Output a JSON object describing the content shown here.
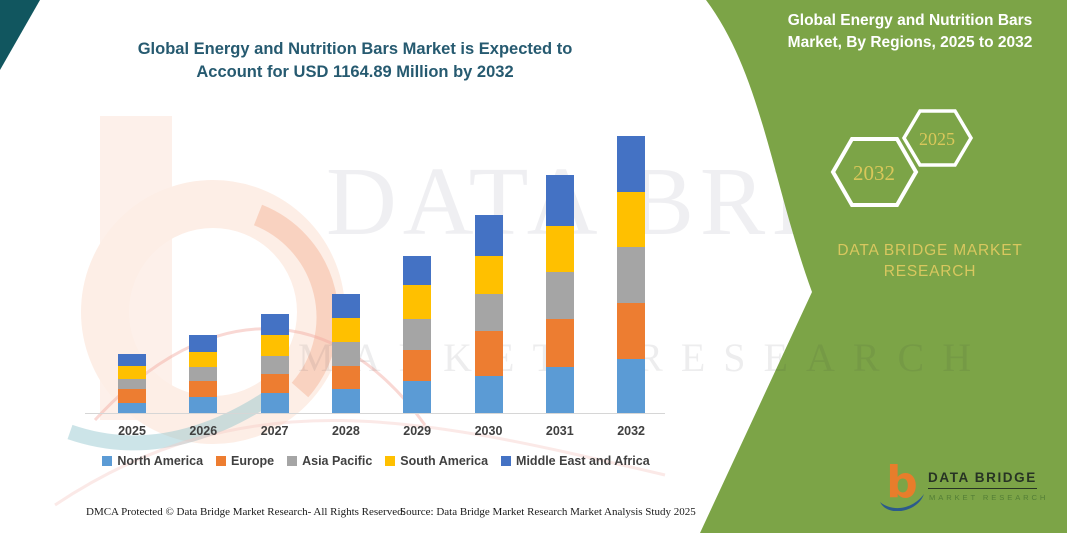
{
  "title": {
    "line1": "Global Energy and Nutrition Bars Market is Expected to",
    "line2": "Account for USD 1164.89 Million by 2032"
  },
  "side_panel": {
    "heading_line1": "Global Energy and Nutrition Bars",
    "heading_line2": "Market, By Regions, 2025 to 2032",
    "hexagons": [
      {
        "label": "2032"
      },
      {
        "label": "2025"
      }
    ],
    "brand_line1": "DATA BRIDGE MARKET",
    "brand_line2": "RESEARCH"
  },
  "watermark": {
    "line1": "DATA BRIDGE",
    "line2": "MARKET RESEARCH"
  },
  "logo": {
    "monogram": "b",
    "title": "DATA BRIDGE",
    "subtitle": "MARKET RESEARCH"
  },
  "footer": {
    "dmca": "DMCA Protected © Data Bridge Market Research-  All Rights Reserved.",
    "source": "Source: Data Bridge Market Research  Market Analysis Study 2025"
  },
  "colors": {
    "panel_green": "#7CA447",
    "title_teal": "#265A70",
    "gold_text": "#D8C75F",
    "corner_teal": "#11565F",
    "axis_line": "#D6D6D6"
  },
  "chart_data": {
    "type": "bar",
    "stacked": true,
    "title": "Global Energy and Nutrition Bars Market, By Regions, 2025 to 2032",
    "xlabel": "",
    "ylabel": "",
    "unit": "USD Million (estimated; only 2032 total of 1164.89 is labeled)",
    "y_axis_visible": false,
    "grid": false,
    "legend_position": "bottom",
    "categories": [
      "2025",
      "2026",
      "2027",
      "2028",
      "2029",
      "2030",
      "2031",
      "2032"
    ],
    "series": [
      {
        "name": "North America",
        "color": "#5B9BD5",
        "values": [
          42,
          66,
          84,
          101,
          136,
          154,
          196,
          227
        ]
      },
      {
        "name": "Europe",
        "color": "#ED7D31",
        "values": [
          59,
          70,
          80,
          98,
          131,
          190,
          200,
          238
        ]
      },
      {
        "name": "Asia Pacific",
        "color": "#A5A5A5",
        "values": [
          42,
          56,
          78,
          98,
          129,
          159,
          198,
          236
        ]
      },
      {
        "name": "South America",
        "color": "#FFC000",
        "values": [
          55,
          67,
          87,
          103,
          144,
          160,
          195,
          232
        ]
      },
      {
        "name": "Middle East and Africa",
        "color": "#4472C4",
        "values": [
          51,
          70,
          87,
          101,
          122,
          170,
          212,
          232
        ]
      }
    ],
    "totals": [
      249,
      329,
      416,
      501,
      662,
      833,
      1001,
      1165
    ],
    "labeled_total_2032": 1164.89
  }
}
